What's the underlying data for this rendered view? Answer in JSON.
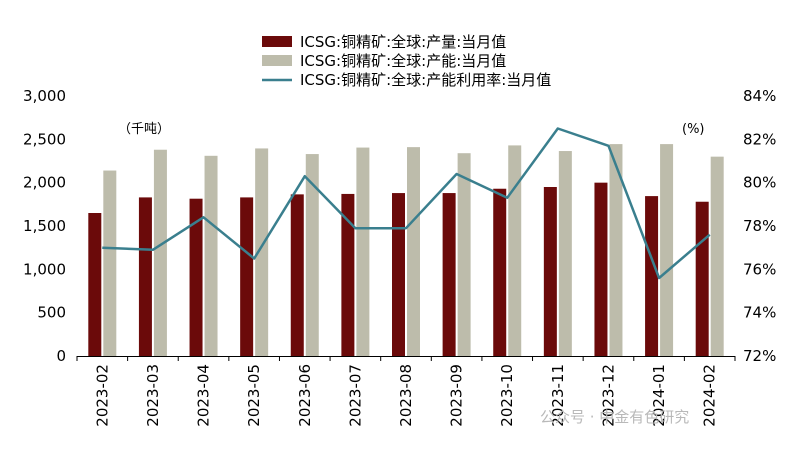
{
  "chart_data": {
    "type": "bar",
    "categories": [
      "2023-02",
      "2023-03",
      "2023-04",
      "2023-05",
      "2023-06",
      "2023-07",
      "2023-08",
      "2023-09",
      "2023-10",
      "2023-11",
      "2023-12",
      "2024-01",
      "2024-02"
    ],
    "series": [
      {
        "name": "ICSG:铜精矿:全球:产量:当月值",
        "type": "bar",
        "axis": "left",
        "color": "#6b0a0a",
        "values": [
          1650,
          1830,
          1815,
          1830,
          1865,
          1870,
          1880,
          1880,
          1930,
          1950,
          2000,
          1845,
          1780
        ]
      },
      {
        "name": "ICSG:铜精矿:全球:产能:当月值",
        "type": "bar",
        "axis": "left",
        "color": "#bdbcab",
        "values": [
          2140,
          2380,
          2310,
          2395,
          2330,
          2405,
          2410,
          2340,
          2430,
          2365,
          2445,
          2445,
          2300
        ]
      },
      {
        "name": "ICSG:铜精矿:全球:产能利用率:当月值",
        "type": "line",
        "axis": "right",
        "color": "#3a7f8e",
        "values": [
          77.0,
          76.9,
          78.4,
          76.5,
          80.3,
          77.9,
          77.9,
          80.4,
          79.3,
          82.5,
          81.7,
          75.6,
          77.6
        ]
      }
    ],
    "left_axis": {
      "unit": "（千吨）",
      "ylim": [
        0,
        3000
      ],
      "ticks": [
        "0",
        "500",
        "1,000",
        "1,500",
        "2,000",
        "2,500",
        "3,000"
      ]
    },
    "right_axis": {
      "unit": "(%)",
      "ylim": [
        72,
        84
      ],
      "ticks": [
        "72%",
        "74%",
        "76%",
        "78%",
        "80%",
        "82%",
        "84%"
      ]
    },
    "legend_position": "top",
    "grid": false
  },
  "watermark": "公众号 · 中金有色研究"
}
